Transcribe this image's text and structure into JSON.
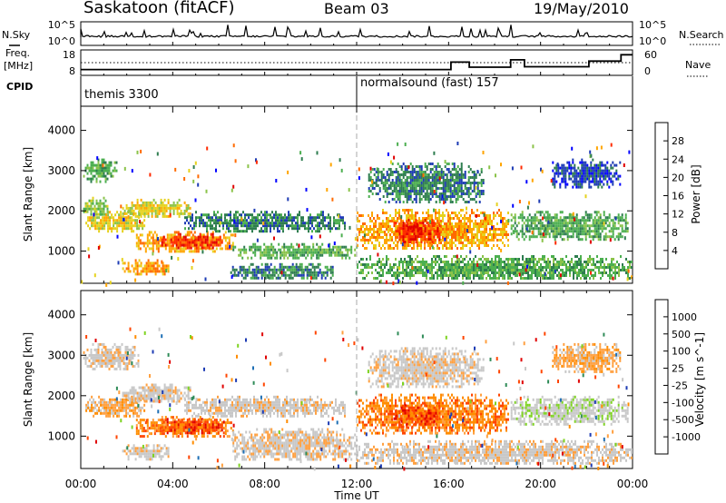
{
  "header": {
    "station": "Saskatoon (fitACF)",
    "beam": "Beam 03",
    "date": "19/May/2010"
  },
  "side_labels": {
    "nsky": "N.Sky",
    "nsearch": "N.Search",
    "freq_line1": "Freq.",
    "freq_line2": "[MHz]",
    "nave": "Nave",
    "cpid": "CPID"
  },
  "colors": {
    "power_scale": [
      "#0000ff",
      "#1e3cb4",
      "#2e7d4f",
      "#4caf50",
      "#8bc34a",
      "#e6d21e",
      "#ffa500",
      "#ff6a00",
      "#ff2a00",
      "#e00000"
    ],
    "velocity_scale": [
      "#e00000",
      "#ff4500",
      "#ff8c00",
      "#ffa040",
      "#c8c8c8",
      "#c8c8c8",
      "#7ed321",
      "#2e8b57",
      "#1e6fb5",
      "#1e3cb4"
    ]
  },
  "chart_data": [
    {
      "type": "line",
      "name": "nsky-nsearch-panel",
      "ylabel_left": "N.Sky",
      "ylabel_right": "N.Search",
      "left_ticks": [
        "10^5",
        "10^0"
      ],
      "right_ticks": [
        "10^5",
        "10^0"
      ],
      "xlim": [
        0,
        24
      ]
    },
    {
      "type": "line",
      "name": "freq-nave-panel",
      "ylabel_left": "Freq. [MHz]",
      "ylabel_right": "Nave",
      "left_ticks": [
        "18",
        "8"
      ],
      "right_ticks": [
        "60",
        "0"
      ],
      "xlim": [
        0,
        24
      ],
      "freq_steps": [
        [
          0,
          10.3
        ],
        [
          16.1,
          10.3
        ],
        [
          16.1,
          13.2
        ],
        [
          16.9,
          13.2
        ],
        [
          16.9,
          11.2
        ],
        [
          18.7,
          11.2
        ],
        [
          18.7,
          14.1
        ],
        [
          19.3,
          14.1
        ],
        [
          19.3,
          11.4
        ],
        [
          22.1,
          11.4
        ],
        [
          22.1,
          13.6
        ],
        [
          23.5,
          13.6
        ],
        [
          23.5,
          16.1
        ],
        [
          24,
          16.1
        ]
      ]
    },
    {
      "type": "table",
      "name": "cpid-panel",
      "segments": [
        {
          "start": 0,
          "label": "themis 3300"
        },
        {
          "start": 12,
          "label": "normalsound (fast) 157"
        }
      ]
    },
    {
      "type": "heatmap",
      "name": "power-panel",
      "ylabel": "Slant Range [km]",
      "yticks": [
        1000,
        2000,
        3000,
        4000
      ],
      "ylim": [
        200,
        4600
      ],
      "xlim": [
        0,
        24
      ],
      "colorbar_label": "Power [dB]",
      "colorbar_ticks": [
        "4",
        "8",
        "12",
        "16",
        "20",
        "24",
        "28"
      ],
      "regions": [
        {
          "t0": 0.1,
          "t1": 1.6,
          "r0": 2750,
          "r1": 3300,
          "level": 3
        },
        {
          "t0": 0.1,
          "t1": 1.2,
          "r0": 1900,
          "r1": 2350,
          "level": 4
        },
        {
          "t0": 0.2,
          "t1": 2.8,
          "r0": 1500,
          "r1": 2000,
          "level": 5
        },
        {
          "t0": 1.8,
          "t1": 4.8,
          "r0": 1850,
          "r1": 2300,
          "level": 5
        },
        {
          "t0": 2.4,
          "t1": 6.6,
          "r0": 1000,
          "r1": 1500,
          "level": 6
        },
        {
          "t0": 3.5,
          "t1": 6.2,
          "r0": 1100,
          "r1": 1450,
          "level": 8
        },
        {
          "t0": 1.8,
          "t1": 3.8,
          "r0": 450,
          "r1": 800,
          "level": 6
        },
        {
          "t0": 6.6,
          "t1": 12.0,
          "r0": 850,
          "r1": 1200,
          "level": 3
        },
        {
          "t0": 4.5,
          "t1": 11.5,
          "r0": 1500,
          "r1": 2000,
          "level": 2
        },
        {
          "t0": 6.5,
          "t1": 11.0,
          "r0": 300,
          "r1": 700,
          "level": 2
        },
        {
          "t0": 12.0,
          "t1": 18.6,
          "r0": 1050,
          "r1": 2050,
          "level": 6
        },
        {
          "t0": 13.6,
          "t1": 15.6,
          "r0": 1250,
          "r1": 1800,
          "level": 8
        },
        {
          "t0": 14.2,
          "t1": 14.8,
          "r0": 1500,
          "r1": 1700,
          "level": 9
        },
        {
          "t0": 12.5,
          "t1": 17.5,
          "r0": 2200,
          "r1": 3200,
          "level": 2
        },
        {
          "t0": 12.0,
          "t1": 24.0,
          "r0": 300,
          "r1": 900,
          "level": 3
        },
        {
          "t0": 18.7,
          "t1": 23.8,
          "r0": 1300,
          "r1": 2000,
          "level": 3
        },
        {
          "t0": 20.5,
          "t1": 23.5,
          "r0": 2600,
          "r1": 3300,
          "level": 1
        }
      ]
    },
    {
      "type": "heatmap",
      "name": "velocity-panel",
      "ylabel": "Slant Range [km]",
      "xlabel": "Time UT",
      "yticks": [
        1000,
        2000,
        3000,
        4000
      ],
      "ylim": [
        200,
        4600
      ],
      "xlim": [
        0,
        24
      ],
      "xticks": [
        "00:00",
        "04:00",
        "08:00",
        "12:00",
        "16:00",
        "20:00",
        "00:00"
      ],
      "colorbar_label": "Velocity [m s^-1]",
      "colorbar_ticks": [
        "-1000",
        "-500",
        "-100",
        "-25",
        "25",
        "100",
        "500",
        "1000"
      ],
      "regions": [
        {
          "t0": 0.1,
          "t1": 2.5,
          "r0": 2650,
          "r1": 3300,
          "level": 4
        },
        {
          "t0": 0.2,
          "t1": 2.8,
          "r0": 1500,
          "r1": 2000,
          "level": 3
        },
        {
          "t0": 1.8,
          "t1": 4.8,
          "r0": 1850,
          "r1": 2300,
          "level": 4
        },
        {
          "t0": 2.4,
          "t1": 6.6,
          "r0": 1000,
          "r1": 1500,
          "level": 2
        },
        {
          "t0": 3.5,
          "t1": 6.2,
          "r0": 1100,
          "r1": 1450,
          "level": 1
        },
        {
          "t0": 1.8,
          "t1": 3.8,
          "r0": 450,
          "r1": 800,
          "level": 4
        },
        {
          "t0": 6.6,
          "t1": 12.0,
          "r0": 400,
          "r1": 1200,
          "level": 4
        },
        {
          "t0": 4.5,
          "t1": 11.5,
          "r0": 1500,
          "r1": 2000,
          "level": 4
        },
        {
          "t0": 12.0,
          "t1": 18.6,
          "r0": 1050,
          "r1": 2050,
          "level": 2
        },
        {
          "t0": 13.6,
          "t1": 15.6,
          "r0": 1250,
          "r1": 1800,
          "level": 1
        },
        {
          "t0": 12.5,
          "t1": 17.5,
          "r0": 2200,
          "r1": 3200,
          "level": 4
        },
        {
          "t0": 12.0,
          "t1": 24.0,
          "r0": 300,
          "r1": 900,
          "level": 4
        },
        {
          "t0": 18.7,
          "t1": 23.8,
          "r0": 1300,
          "r1": 2000,
          "level": 5
        },
        {
          "t0": 20.5,
          "t1": 23.5,
          "r0": 2600,
          "r1": 3300,
          "level": 3
        }
      ]
    }
  ]
}
